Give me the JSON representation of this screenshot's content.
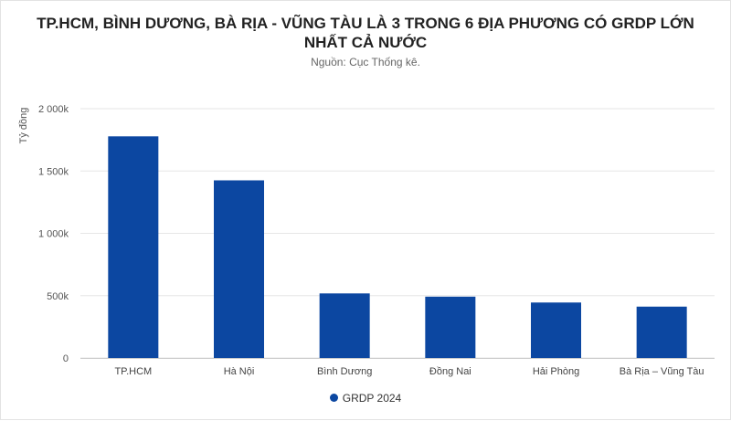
{
  "title": "TP.HCM, BÌNH DƯƠNG, BÀ RỊA - VŨNG TÀU LÀ 3 TRONG 6 ĐỊA PHƯƠNG CÓ GRDP LỚN NHẤT CẢ NƯỚC",
  "subtitle": "Nguồn: Cục Thống kê.",
  "colors": {
    "bar": "#0c47a1",
    "grid": "#e6e6e6",
    "axis": "#cccccc"
  },
  "chart_data": {
    "type": "bar",
    "title": "TP.HCM, BÌNH DƯƠNG, BÀ RỊA - VŨNG TÀU LÀ 3 TRONG 6 ĐỊA PHƯƠNG CÓ GRDP LỚN NHẤT CẢ NƯỚC",
    "subtitle": "Nguồn: Cục Thống kê.",
    "xlabel": "",
    "ylabel": "Tỷ đồng",
    "categories": [
      "TP.HCM",
      "Hà Nội",
      "Bình Dương",
      "Đồng Nai",
      "Hải Phòng",
      "Bà Rịa – Vũng Tàu"
    ],
    "series": [
      {
        "name": "GRDP 2024",
        "values": [
          1778000,
          1425000,
          518000,
          492000,
          445000,
          412000
        ]
      }
    ],
    "ylim": [
      0,
      2000000
    ],
    "yticks": [
      0,
      500000,
      1000000,
      1500000,
      2000000
    ],
    "ytick_labels": [
      "0",
      "500k",
      "1 000k",
      "1 500k",
      "2 000k"
    ],
    "grid": true,
    "legend": "bottom-center"
  }
}
